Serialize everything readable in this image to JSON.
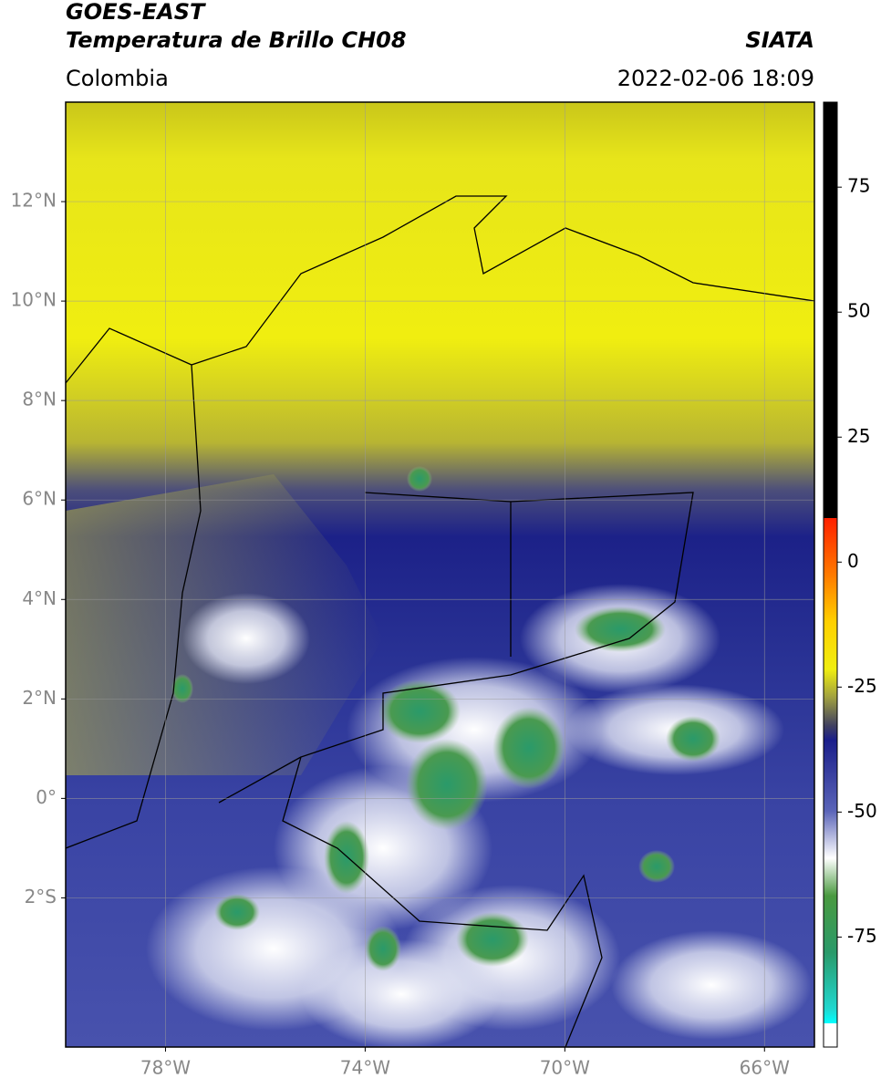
{
  "header": {
    "title": "GOES-EAST",
    "subtitle": "Temperatura de Brillo CH08",
    "source": "SIATA",
    "region": "Colombia",
    "datetime": "2022-02-06 18:09"
  },
  "map": {
    "xlim": [
      -80,
      -65
    ],
    "ylim": [
      -5,
      14
    ],
    "xticks": [
      {
        "value": -78,
        "label": "78°W"
      },
      {
        "value": -74,
        "label": "74°W"
      },
      {
        "value": -70,
        "label": "70°W"
      },
      {
        "value": -66,
        "label": "66°W"
      }
    ],
    "yticks": [
      {
        "value": 12,
        "label": "12°N"
      },
      {
        "value": 10,
        "label": "10°N"
      },
      {
        "value": 8,
        "label": "8°N"
      },
      {
        "value": 6,
        "label": "6°N"
      },
      {
        "value": 4,
        "label": "4°N"
      },
      {
        "value": 2,
        "label": "2°N"
      },
      {
        "value": 0,
        "label": "0°"
      },
      {
        "value": -2,
        "label": "2°S"
      }
    ],
    "grid": true
  },
  "colorbar": {
    "lim": [
      -97,
      92
    ],
    "ticks": [
      75,
      50,
      25,
      0,
      -25,
      -50,
      -75
    ]
  }
}
